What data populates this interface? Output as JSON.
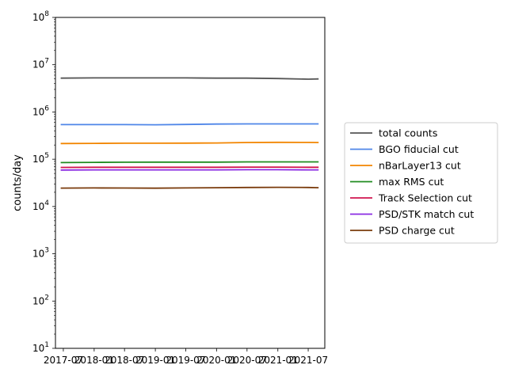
{
  "chart_data": {
    "type": "line",
    "title": "",
    "xlabel": "",
    "ylabel": "counts/day",
    "yscale": "log",
    "ylim": [
      10,
      100000000
    ],
    "xlim": [
      "2017-05-15",
      "2021-10-08"
    ],
    "y_ticks": [
      {
        "value": 10,
        "base": "10",
        "exp": "1"
      },
      {
        "value": 100,
        "base": "10",
        "exp": "2"
      },
      {
        "value": 1000,
        "base": "10",
        "exp": "3"
      },
      {
        "value": 10000,
        "base": "10",
        "exp": "4"
      },
      {
        "value": 100000,
        "base": "10",
        "exp": "5"
      },
      {
        "value": 1000000,
        "base": "10",
        "exp": "6"
      },
      {
        "value": 10000000,
        "base": "10",
        "exp": "7"
      },
      {
        "value": 100000000,
        "base": "10",
        "exp": "8"
      }
    ],
    "x_ticks": [
      {
        "date": "2017-07-01",
        "label": "2017-07"
      },
      {
        "date": "2018-01-01",
        "label": "2018-01"
      },
      {
        "date": "2018-07-01",
        "label": "2018-07"
      },
      {
        "date": "2019-01-01",
        "label": "2019-01"
      },
      {
        "date": "2019-07-01",
        "label": "2019-07"
      },
      {
        "date": "2020-01-01",
        "label": "2020-01"
      },
      {
        "date": "2020-07-01",
        "label": "2020-07"
      },
      {
        "date": "2021-01-01",
        "label": "2021-01"
      },
      {
        "date": "2021-07-01",
        "label": "2021-07"
      }
    ],
    "grid": false,
    "legend_position": "right",
    "x": [
      "2017-06-15",
      "2018-01-01",
      "2018-07-01",
      "2019-01-01",
      "2019-07-01",
      "2020-01-01",
      "2020-07-01",
      "2021-01-01",
      "2021-07-01",
      "2021-09-01"
    ],
    "series": [
      {
        "name": "total counts",
        "color": "#555555",
        "values": [
          5200000,
          5250000,
          5250000,
          5250000,
          5250000,
          5200000,
          5200000,
          5100000,
          4950000,
          5000000
        ]
      },
      {
        "name": "BGO fiducial cut",
        "color": "#4f86e8",
        "values": [
          540000,
          540000,
          540000,
          535000,
          545000,
          555000,
          560000,
          560000,
          560000,
          560000
        ]
      },
      {
        "name": "nBarLayer13 cut",
        "color": "#f28500",
        "values": [
          215000,
          217000,
          218000,
          218000,
          219000,
          221000,
          226000,
          228000,
          227000,
          226000
        ]
      },
      {
        "name": "max RMS cut",
        "color": "#1f8b1f",
        "values": [
          85000,
          86000,
          86500,
          87000,
          87000,
          87000,
          88000,
          88000,
          88000,
          88000
        ]
      },
      {
        "name": "Track Selection cut",
        "color": "#d1144f",
        "values": [
          67000,
          67500,
          67500,
          67500,
          67500,
          67500,
          68000,
          68000,
          67500,
          67500
        ]
      },
      {
        "name": "PSD/STK match cut",
        "color": "#8a2be2",
        "values": [
          59000,
          59500,
          59500,
          59500,
          59500,
          59500,
          60000,
          60000,
          59500,
          59500
        ]
      },
      {
        "name": "PSD charge cut",
        "color": "#7a3b0c",
        "values": [
          24500,
          24700,
          24600,
          24400,
          24700,
          25000,
          25300,
          25500,
          25300,
          25000
        ]
      }
    ]
  }
}
